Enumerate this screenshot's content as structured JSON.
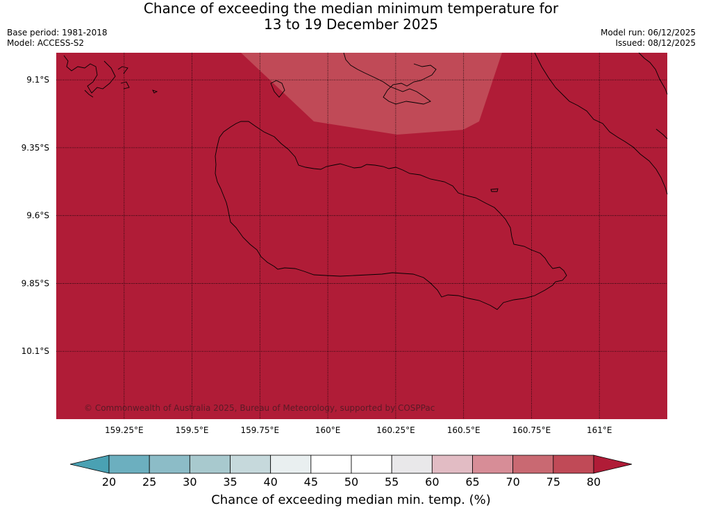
{
  "title": {
    "line1": "Chance of exceeding the median minimum temperature for",
    "line2": "13 to 19 December 2025"
  },
  "meta": {
    "base_period": "Base period: 1981-2018",
    "model": "Model: ACCESS-S2",
    "model_run": "Model run: 06/12/2025",
    "issued": "Issued: 08/12/2025"
  },
  "copyright": "© Commonwealth of Australia 2025, Bureau of Meteorology, supported by COSPPac",
  "colors": {
    "background_class": "#b01c37",
    "overlay_class": "#c04a57",
    "coastline": "#000000"
  },
  "chart_data": {
    "type": "heatmap",
    "title": "Chance of exceeding the median minimum temperature for 13 to 19 December 2025",
    "x_axis": {
      "ticks": [
        159.25,
        159.5,
        159.75,
        160.0,
        160.25,
        160.5,
        160.75,
        161.0
      ],
      "tick_labels": [
        "159.25°E",
        "159.5°E",
        "159.75°E",
        "160°E",
        "160.25°E",
        "160.5°E",
        "160.75°E",
        "161°E"
      ],
      "range": [
        159.0,
        161.25
      ]
    },
    "y_axis": {
      "ticks": [
        -9.1,
        -9.35,
        -9.6,
        -9.85,
        -10.1
      ],
      "tick_labels": [
        "9.1°S",
        "9.35°S",
        "9.6°S",
        "9.85°S",
        "10.1°S"
      ],
      "range": [
        -10.35,
        -9.0
      ]
    },
    "regions": [
      {
        "class": "75-80",
        "description": "northern central patch",
        "value_range": [
          75,
          80
        ]
      },
      {
        "class": ">80",
        "description": "rest of domain",
        "value_range": [
          80,
          100
        ]
      }
    ],
    "colorbar": {
      "label": "Chance of exceeding median min. temp. (%)",
      "boundaries": [
        20,
        25,
        30,
        35,
        40,
        45,
        50,
        55,
        60,
        65,
        70,
        75,
        80
      ],
      "extend": "both",
      "colors": [
        "#4aa1b3",
        "#6cafbf",
        "#8cbcc7",
        "#a8c9ce",
        "#c6d9dc",
        "#e9eff0",
        "#ffffff",
        "#ffffff",
        "#e9e8ea",
        "#e2bcc4",
        "#d78d97",
        "#c96972",
        "#c04a57",
        "#b01c37"
      ]
    }
  }
}
